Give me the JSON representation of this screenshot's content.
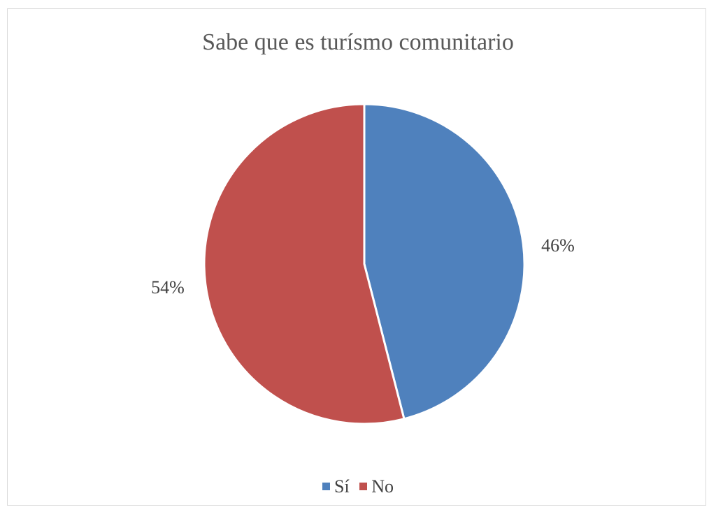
{
  "chart_data": {
    "type": "pie",
    "title": "Sabe que es turísmo comunitario",
    "legend_position": "bottom",
    "slices": [
      {
        "name": "Sí",
        "value": 46,
        "label": "46%",
        "color": "#4f81bd"
      },
      {
        "name": "No",
        "value": 54,
        "label": "54%",
        "color": "#c0504d"
      }
    ]
  }
}
